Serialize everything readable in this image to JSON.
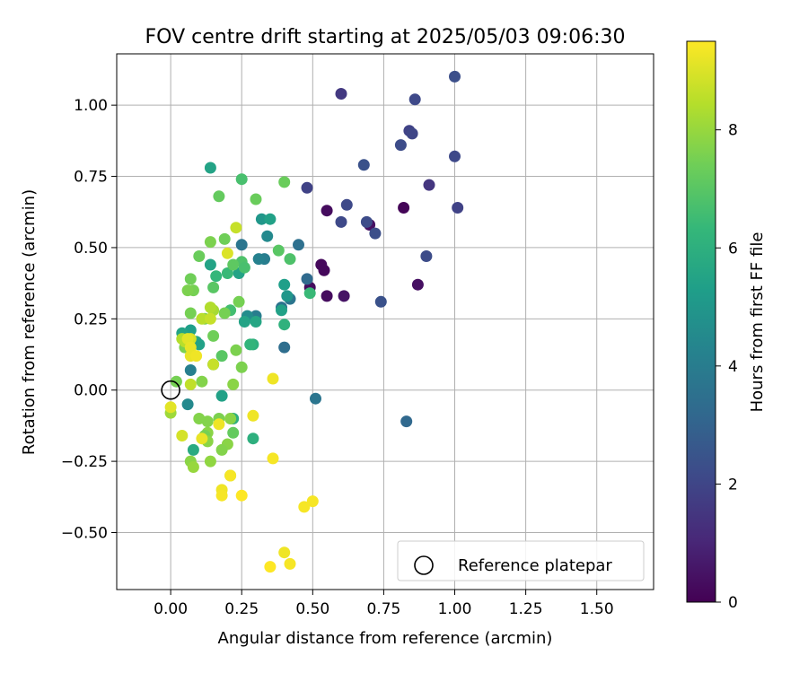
{
  "chart_data": {
    "type": "scatter",
    "title": "FOV centre drift starting at 2025/05/03 09:06:30",
    "xlabel": "Angular distance from reference (arcmin)",
    "ylabel": "Rotation from reference (arcmin)",
    "xlim": [
      -0.19,
      1.7
    ],
    "ylim": [
      -0.7,
      1.18
    ],
    "xticks": [
      0.0,
      0.25,
      0.5,
      0.75,
      1.0,
      1.25,
      1.5
    ],
    "xtick_labels": [
      "0.00",
      "0.25",
      "0.50",
      "0.75",
      "1.00",
      "1.25",
      "1.50"
    ],
    "yticks": [
      -0.5,
      -0.25,
      0.0,
      0.25,
      0.5,
      0.75,
      1.0
    ],
    "ytick_labels": [
      "−0.50",
      "−0.25",
      "0.00",
      "0.25",
      "0.50",
      "0.75",
      "1.00"
    ],
    "grid": true,
    "legend": {
      "placement": "lower-right",
      "entries": [
        "Reference platepar"
      ]
    },
    "reference": {
      "x": 0.0,
      "y": 0.0
    },
    "colorbar": {
      "label": "Hours from first FF file",
      "min": 0,
      "max": 9.5,
      "ticks": [
        0,
        2,
        4,
        6,
        8
      ],
      "tick_labels": [
        "0",
        "2",
        "4",
        "6",
        "8"
      ],
      "colormap": "viridis",
      "stops": [
        "#440154",
        "#482878",
        "#3e4989",
        "#31688e",
        "#26828e",
        "#1f9e89",
        "#35b779",
        "#6ece58",
        "#b5de2b",
        "#fde725"
      ]
    },
    "points": [
      [
        0.55,
        0.63,
        0.3
      ],
      [
        0.53,
        0.44,
        0.2
      ],
      [
        0.54,
        0.42,
        0.2
      ],
      [
        0.49,
        0.36,
        0.3
      ],
      [
        0.55,
        0.33,
        0.3
      ],
      [
        0.61,
        0.33,
        0.5
      ],
      [
        0.7,
        0.58,
        0.4
      ],
      [
        0.82,
        0.64,
        0.1
      ],
      [
        0.87,
        0.37,
        0.4
      ],
      [
        0.6,
        1.04,
        1.6
      ],
      [
        0.86,
        1.02,
        2.1
      ],
      [
        1.0,
        1.1,
        2.3
      ],
      [
        0.84,
        0.91,
        1.9
      ],
      [
        0.85,
        0.9,
        2.0
      ],
      [
        0.81,
        0.86,
        2.2
      ],
      [
        1.0,
        0.82,
        2.1
      ],
      [
        0.68,
        0.79,
        2.4
      ],
      [
        0.91,
        0.72,
        1.5
      ],
      [
        0.48,
        0.71,
        1.9
      ],
      [
        1.01,
        0.64,
        1.9
      ],
      [
        0.62,
        0.65,
        2.1
      ],
      [
        0.6,
        0.59,
        2.1
      ],
      [
        0.69,
        0.59,
        2.2
      ],
      [
        0.72,
        0.55,
        2.3
      ],
      [
        0.9,
        0.47,
        2.2
      ],
      [
        0.74,
        0.31,
        2.4
      ],
      [
        0.25,
        0.51,
        3.7
      ],
      [
        0.45,
        0.51,
        3.5
      ],
      [
        0.48,
        0.39,
        3.3
      ],
      [
        0.42,
        0.32,
        3.7
      ],
      [
        0.39,
        0.29,
        3.6
      ],
      [
        0.33,
        0.46,
        4.0
      ],
      [
        0.31,
        0.46,
        4.2
      ],
      [
        0.3,
        0.26,
        4.0
      ],
      [
        0.4,
        0.15,
        3.4
      ],
      [
        0.51,
        -0.03,
        3.7
      ],
      [
        0.83,
        -0.11,
        3.2
      ],
      [
        0.07,
        0.07,
        4.1
      ],
      [
        0.34,
        0.54,
        4.5
      ],
      [
        0.27,
        0.26,
        4.6
      ],
      [
        0.06,
        -0.05,
        4.5
      ],
      [
        0.32,
        0.6,
        5.0
      ],
      [
        0.35,
        0.6,
        5.4
      ],
      [
        0.4,
        0.37,
        5.3
      ],
      [
        0.41,
        0.33,
        5.0
      ],
      [
        0.39,
        0.28,
        5.4
      ],
      [
        0.26,
        0.24,
        5.5
      ],
      [
        0.3,
        0.24,
        5.6
      ],
      [
        0.14,
        0.78,
        5.5
      ],
      [
        0.24,
        0.41,
        5.5
      ],
      [
        0.14,
        0.44,
        5.5
      ],
      [
        0.07,
        0.21,
        5.3
      ],
      [
        0.04,
        0.2,
        5.5
      ],
      [
        0.09,
        0.17,
        5.6
      ],
      [
        0.1,
        0.16,
        5.4
      ],
      [
        0.15,
        0.09,
        5.5
      ],
      [
        0.18,
        -0.02,
        5.4
      ],
      [
        0.08,
        -0.21,
        5.8
      ],
      [
        0.29,
        0.16,
        6.0
      ],
      [
        0.28,
        0.16,
        6.2
      ],
      [
        0.22,
        -0.1,
        6.0
      ],
      [
        0.29,
        -0.17,
        6.0
      ],
      [
        0.16,
        0.4,
        6.3
      ],
      [
        0.4,
        0.23,
        6.1
      ],
      [
        0.2,
        0.41,
        6.4
      ],
      [
        0.49,
        0.34,
        6.4
      ],
      [
        0.25,
        0.74,
        6.7
      ],
      [
        0.21,
        0.28,
        6.6
      ],
      [
        0.25,
        0.45,
        6.8
      ],
      [
        0.26,
        0.43,
        6.7
      ],
      [
        0.42,
        0.46,
        6.8
      ],
      [
        0.38,
        0.49,
        7.0
      ],
      [
        0.22,
        0.44,
        7.1
      ],
      [
        0.15,
        0.36,
        7.0
      ],
      [
        0.18,
        0.12,
        7.0
      ],
      [
        0.22,
        -0.15,
        7.2
      ],
      [
        0.17,
        0.68,
        7.2
      ],
      [
        0.3,
        0.67,
        7.3
      ],
      [
        0.4,
        0.73,
        7.3
      ],
      [
        0.19,
        0.53,
        7.4
      ],
      [
        0.1,
        0.47,
        7.3
      ],
      [
        0.14,
        0.52,
        7.6
      ],
      [
        0.08,
        0.35,
        7.5
      ],
      [
        0.07,
        0.39,
        7.4
      ],
      [
        0.06,
        0.35,
        7.6
      ],
      [
        0.07,
        0.27,
        7.5
      ],
      [
        0.12,
        0.25,
        7.6
      ],
      [
        0.19,
        0.27,
        7.5
      ],
      [
        0.24,
        0.31,
        7.5
      ],
      [
        0.15,
        0.19,
        7.4
      ],
      [
        0.23,
        0.14,
        7.6
      ],
      [
        0.25,
        0.08,
        7.6
      ],
      [
        0.05,
        0.15,
        7.6
      ],
      [
        0.11,
        0.03,
        7.7
      ],
      [
        0.02,
        0.03,
        7.5
      ],
      [
        0.22,
        0.02,
        7.8
      ],
      [
        0.17,
        -0.1,
        7.6
      ],
      [
        0.1,
        -0.1,
        7.7
      ],
      [
        0.13,
        -0.11,
        7.7
      ],
      [
        0.21,
        -0.1,
        7.8
      ],
      [
        0.13,
        -0.15,
        7.8
      ],
      [
        0.12,
        -0.16,
        7.5
      ],
      [
        0.13,
        -0.18,
        7.8
      ],
      [
        0.2,
        -0.19,
        7.8
      ],
      [
        0.18,
        -0.21,
        7.7
      ],
      [
        0.14,
        -0.25,
        7.9
      ],
      [
        0.07,
        -0.25,
        7.8
      ],
      [
        0.08,
        -0.27,
        8.0
      ],
      [
        0.21,
        -0.3,
        8.1
      ],
      [
        0.0,
        -0.08,
        8.1
      ],
      [
        0.15,
        0.28,
        8.2
      ],
      [
        0.14,
        0.29,
        8.4
      ],
      [
        0.11,
        0.25,
        8.5
      ],
      [
        0.04,
        0.18,
        8.4
      ],
      [
        0.07,
        0.02,
        8.6
      ],
      [
        0.05,
        0.17,
        8.5
      ],
      [
        0.14,
        0.25,
        8.7
      ],
      [
        0.23,
        0.57,
        8.7
      ],
      [
        0.15,
        0.09,
        8.7
      ],
      [
        0.04,
        -0.16,
        8.9
      ],
      [
        0.07,
        0.18,
        8.9
      ],
      [
        0.2,
        0.48,
        9.0
      ],
      [
        0.06,
        0.18,
        9.1
      ],
      [
        0.07,
        0.15,
        9.2
      ],
      [
        0.07,
        0.12,
        9.2
      ],
      [
        0.09,
        0.12,
        9.3
      ],
      [
        0.0,
        -0.06,
        9.1
      ],
      [
        0.36,
        0.04,
        9.3
      ],
      [
        0.11,
        -0.17,
        9.2
      ],
      [
        0.29,
        -0.09,
        9.3
      ],
      [
        0.36,
        -0.24,
        9.4
      ],
      [
        0.17,
        -0.12,
        9.3
      ],
      [
        0.18,
        -0.35,
        9.3
      ],
      [
        0.18,
        -0.37,
        9.4
      ],
      [
        0.21,
        -0.3,
        9.4
      ],
      [
        0.25,
        -0.37,
        9.5
      ],
      [
        0.47,
        -0.41,
        9.4
      ],
      [
        0.5,
        -0.39,
        9.4
      ],
      [
        0.4,
        -0.57,
        9.3
      ],
      [
        0.42,
        -0.61,
        9.4
      ],
      [
        0.35,
        -0.62,
        9.5
      ]
    ]
  }
}
